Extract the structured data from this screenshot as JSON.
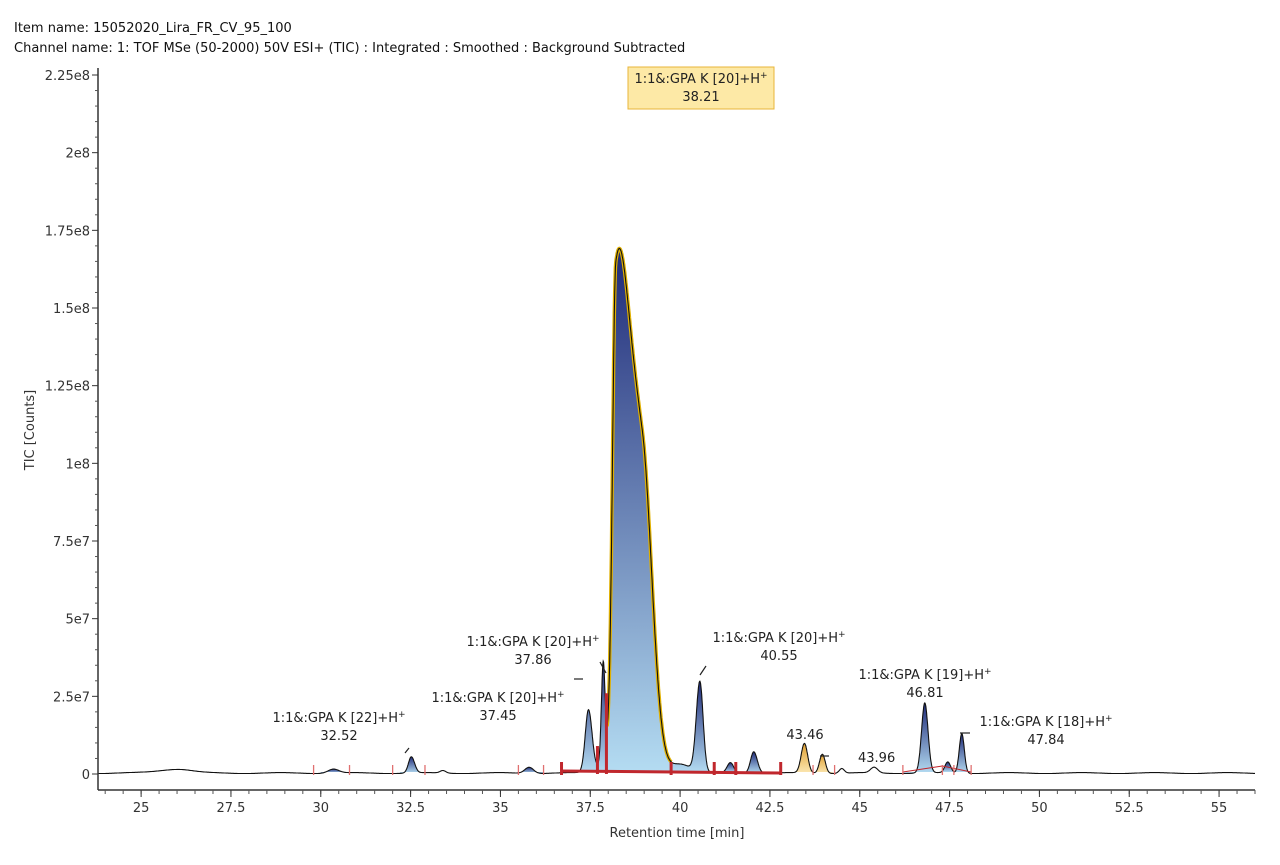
{
  "header": {
    "item_name": "Item name: 15052020_Lira_FR_CV_95_100",
    "channel_name": "Channel name: 1: TOF MSe (50-2000) 50V ESI+ (TIC) : Integrated : Smoothed : Background Subtracted"
  },
  "chart_data": {
    "type": "line",
    "xlabel": "Retention time [min]",
    "ylabel": "TIC [Counts]",
    "xlim": [
      23.8,
      56.0
    ],
    "ylim": [
      0,
      225000000
    ],
    "x_ticks": [
      25,
      27.5,
      30,
      32.5,
      35,
      37.5,
      40,
      42.5,
      45,
      47.5,
      50,
      52.5,
      55
    ],
    "x_tick_labels": [
      "25",
      "27.5",
      "30",
      "32.5",
      "35",
      "37.5",
      "40",
      "42.5",
      "45",
      "47.5",
      "50",
      "52.5",
      "55"
    ],
    "y_ticks": [
      0,
      25000000,
      50000000,
      75000000,
      100000000,
      125000000,
      150000000,
      175000000,
      200000000,
      225000000
    ],
    "y_tick_labels": [
      "0",
      "2.5e7",
      "5e7",
      "7.5e7",
      "1e8",
      "1.25e8",
      "1.5e8",
      "1.75e8",
      "2e8",
      "2.25e8"
    ],
    "grid": false,
    "colors": {
      "trace": "#111111",
      "peak_top": "#1f2a78",
      "peak_bottom": "#b4dcf2",
      "alt_top": "#e0a030",
      "alt_bottom": "#fbe6b0",
      "main_outline": "#e0b000",
      "integration": "#c0272d",
      "label_box": "#fde9a6",
      "label_border": "#e8b53a"
    },
    "peaks": [
      {
        "rt": 26.0,
        "height": 1300000,
        "sl": 0.5,
        "sr": 0.4
      },
      {
        "rt": 30.35,
        "height": 1300000,
        "sl": 0.15,
        "sr": 0.15
      },
      {
        "rt": 32.52,
        "height": 5200000,
        "sl": 0.08,
        "sr": 0.09
      },
      {
        "rt": 33.4,
        "height": 800000,
        "sl": 0.08,
        "sr": 0.08
      },
      {
        "rt": 35.8,
        "height": 2000000,
        "sl": 0.12,
        "sr": 0.12
      },
      {
        "rt": 37.45,
        "height": 20000000,
        "sl": 0.09,
        "sr": 0.1
      },
      {
        "rt": 37.86,
        "height": 31000000,
        "sl": 0.05,
        "sr": 0.05
      },
      {
        "rt": 38.21,
        "height": 140000000,
        "sl": 0.09,
        "sr": 0.35
      },
      {
        "rt": 38.95,
        "height": 95000000,
        "sl": 0.45,
        "sr": 0.28
      },
      {
        "rt": 40.0,
        "height": 3000000,
        "sl": 0.3,
        "sr": 0.3
      },
      {
        "rt": 40.55,
        "height": 29000000,
        "sl": 0.1,
        "sr": 0.09
      },
      {
        "rt": 41.4,
        "height": 3300000,
        "sl": 0.09,
        "sr": 0.09
      },
      {
        "rt": 42.05,
        "height": 7000000,
        "sl": 0.09,
        "sr": 0.1
      },
      {
        "rt": 43.46,
        "height": 9500000,
        "sl": 0.09,
        "sr": 0.09
      },
      {
        "rt": 43.96,
        "height": 6200000,
        "sl": 0.08,
        "sr": 0.08
      },
      {
        "rt": 44.5,
        "height": 1500000,
        "sl": 0.07,
        "sr": 0.07
      },
      {
        "rt": 45.4,
        "height": 1800000,
        "sl": 0.1,
        "sr": 0.1
      },
      {
        "rt": 46.81,
        "height": 22500000,
        "sl": 0.09,
        "sr": 0.09
      },
      {
        "rt": 47.45,
        "height": 3500000,
        "sl": 0.08,
        "sr": 0.08
      },
      {
        "rt": 47.84,
        "height": 12800000,
        "sl": 0.07,
        "sr": 0.07
      }
    ],
    "integrated_regions": [
      {
        "from": 30.0,
        "to": 30.8,
        "kind": "blue"
      },
      {
        "from": 32.2,
        "to": 32.85,
        "kind": "blue"
      },
      {
        "from": 35.5,
        "to": 36.2,
        "kind": "blue"
      },
      {
        "from": 36.7,
        "to": 37.95,
        "kind": "blue"
      },
      {
        "from": 37.95,
        "to": 39.75,
        "kind": "main"
      },
      {
        "from": 39.75,
        "to": 40.95,
        "kind": "blue"
      },
      {
        "from": 40.95,
        "to": 41.55,
        "kind": "blue"
      },
      {
        "from": 41.55,
        "to": 42.8,
        "kind": "blue"
      },
      {
        "from": 43.0,
        "to": 43.7,
        "kind": "alt"
      },
      {
        "from": 43.7,
        "to": 44.25,
        "kind": "alt"
      },
      {
        "from": 46.2,
        "to": 47.3,
        "kind": "blue"
      },
      {
        "from": 47.3,
        "to": 47.62,
        "kind": "blue"
      },
      {
        "from": 47.62,
        "to": 48.1,
        "kind": "blue"
      }
    ],
    "integration_baseline": {
      "from": 36.7,
      "to": 42.8
    },
    "boundary_marks": [
      29.8,
      30.8,
      32.0,
      32.9,
      35.5,
      36.2,
      36.7,
      39.75,
      40.95,
      41.55,
      42.8,
      43.7,
      44.3,
      46.2,
      47.3,
      47.62,
      48.1
    ],
    "drop_lines": [
      {
        "rt": 37.7,
        "height": 9000000
      },
      {
        "rt": 37.95,
        "height": 26000000
      }
    ],
    "annotations": [
      {
        "name": "1:1&:GPA K [22]+H",
        "sup": "+",
        "rt_label": "32.52"
      },
      {
        "name": "1:1&:GPA K [20]+H",
        "sup": "+",
        "rt_label": "37.45"
      },
      {
        "name": "1:1&:GPA K [20]+H",
        "sup": "+",
        "rt_label": "37.86"
      },
      {
        "name": "1:1&:GPA K [20]+H",
        "sup": "+",
        "rt_label": "38.21",
        "highlighted": true
      },
      {
        "name": "1:1&:GPA K [20]+H",
        "sup": "+",
        "rt_label": "40.55"
      },
      {
        "name": "",
        "sup": "",
        "rt_label": "43.46"
      },
      {
        "name": "",
        "sup": "",
        "rt_label": "43.96"
      },
      {
        "name": "1:1&:GPA K [19]+H",
        "sup": "+",
        "rt_label": "46.81"
      },
      {
        "name": "1:1&:GPA K [18]+H",
        "sup": "+",
        "rt_label": "47.84"
      }
    ]
  }
}
